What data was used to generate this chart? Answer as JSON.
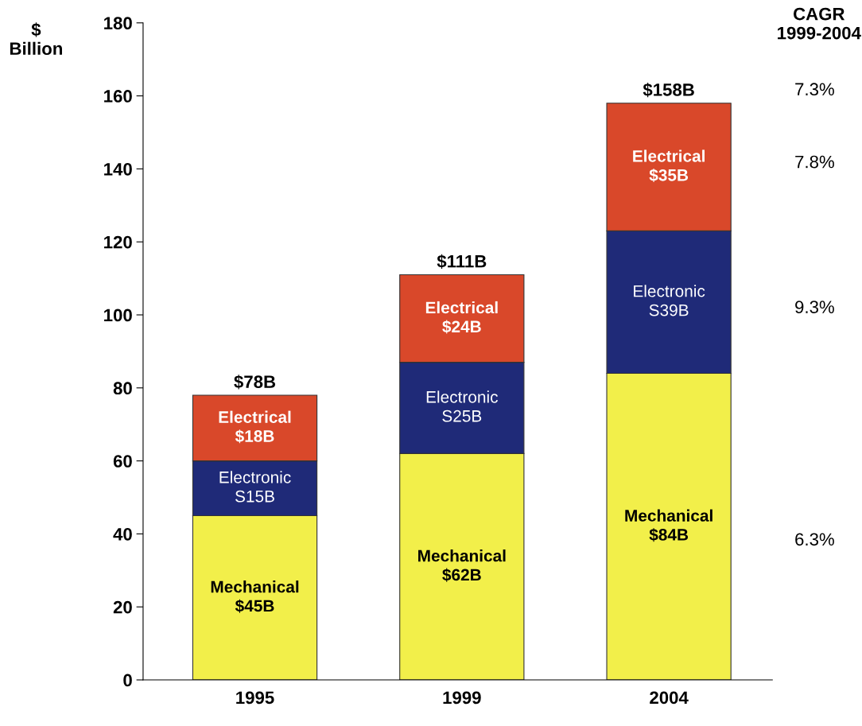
{
  "chart_data": {
    "type": "bar",
    "stacked": true,
    "ylabel": "$\nBillion",
    "categories": [
      "1995",
      "1999",
      "2004"
    ],
    "series": [
      {
        "name": "Mechanical",
        "color": "#f2ef4a",
        "values": [
          45,
          62,
          84
        ],
        "value_labels": [
          "$45B",
          "$62B",
          "$84B"
        ]
      },
      {
        "name": "Electronic",
        "color": "#1f2a78",
        "values": [
          15,
          25,
          39
        ],
        "value_labels": [
          "S15B",
          "S25B",
          "S39B"
        ]
      },
      {
        "name": "Electrical",
        "color": "#d9482a",
        "values": [
          18,
          24,
          35
        ],
        "value_labels": [
          "$18B",
          "$24B",
          "$35B"
        ]
      }
    ],
    "totals": [
      "$78B",
      "$111B",
      "$158B"
    ],
    "ylim": [
      0,
      180
    ],
    "yticks": [
      0,
      20,
      40,
      60,
      80,
      100,
      120,
      140,
      160,
      180
    ],
    "grid": false,
    "legend": false,
    "annotations": [
      "CAGR\n1999-2004",
      "7.3%",
      "7.8%",
      "9.3%",
      "6.3%"
    ]
  }
}
